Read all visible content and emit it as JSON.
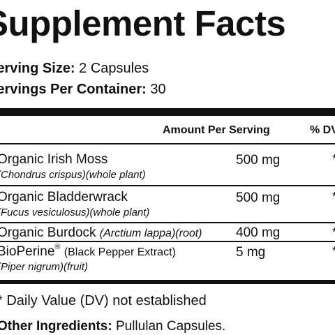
{
  "title": "Supplement Facts",
  "serving_size": {
    "label": "Serving Size:",
    "value": "2 Capsules"
  },
  "servings_per_container": {
    "label": "Servings Per Container:",
    "value": "30"
  },
  "table_header": {
    "amount": "Amount Per Serving",
    "dv": "% DV"
  },
  "ingredients": [
    {
      "name": "Organic Irish Moss",
      "detail": "(Chondrus crispus)(whole plant)",
      "amount": "500 mg",
      "dv": "*"
    },
    {
      "name": "Organic Bladderwrack",
      "detail": "(Fucus vesiculosus)(whole plant)",
      "amount": "500 mg",
      "dv": "*"
    },
    {
      "name": "Organic Burdock",
      "detail_latin": "(Arctium lappa)",
      "detail_part": "(root)",
      "amount": "400 mg",
      "dv": "*"
    },
    {
      "name": "BioPerine",
      "registered": "®",
      "extra": "(Black Pepper Extract)",
      "detail": "(Piper nigrum)(fruit)",
      "amount": "5 mg",
      "dv": "*"
    }
  ],
  "footnote": "* Daily Value (DV) not established",
  "other_ingredients": {
    "label": "Other Ingredients:",
    "value": "Pullulan Capsules."
  }
}
